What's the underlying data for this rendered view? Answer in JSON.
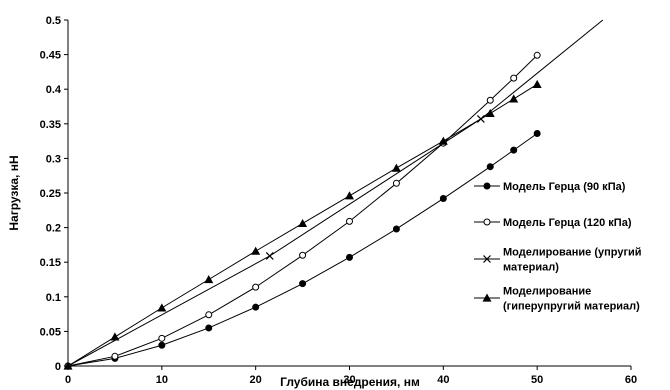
{
  "chart_data": {
    "type": "line",
    "title": "",
    "xlabel": "Глубина внедрения, нм",
    "ylabel": "Нагрузка, нН",
    "xlim": [
      0,
      60
    ],
    "ylim": [
      0,
      0.5
    ],
    "x_ticks": [
      "0",
      "10",
      "20",
      "30",
      "40",
      "50",
      "60"
    ],
    "y_ticks": [
      "0",
      "0.05",
      "0.1",
      "0.15",
      "0.2",
      "0.25",
      "0.3",
      "0.35",
      "0.4",
      "0.45",
      "0.5"
    ],
    "grid": false,
    "legend_position": "right",
    "series": [
      {
        "name": "Модель Герца (90 кПа)",
        "marker": "filled-circle",
        "color": "#000000",
        "x": [
          0,
          5,
          10,
          15,
          20,
          25,
          30,
          35,
          40,
          45,
          47.5,
          50
        ],
        "y": [
          0,
          0.011,
          0.03,
          0.055,
          0.085,
          0.119,
          0.157,
          0.198,
          0.242,
          0.288,
          0.312,
          0.336
        ]
      },
      {
        "name": "Модель Герца (120 кПа)",
        "marker": "open-circle",
        "color": "#000000",
        "x": [
          0,
          5,
          10,
          15,
          20,
          25,
          30,
          35,
          40,
          45,
          47.5,
          50
        ],
        "y": [
          0,
          0.014,
          0.04,
          0.074,
          0.114,
          0.16,
          0.209,
          0.264,
          0.322,
          0.384,
          0.416,
          0.449
        ]
      },
      {
        "name": "Моделирование (упругий материал)",
        "marker": "x",
        "color": "#000000",
        "x": [
          0,
          21.5,
          44,
          57
        ],
        "y": [
          0,
          0.159,
          0.357,
          0.5
        ]
      },
      {
        "name": "Моделирование (гиперупругий материал)",
        "marker": "filled-triangle",
        "color": "#000000",
        "x": [
          0,
          5,
          10,
          15,
          20,
          25,
          30,
          35,
          40,
          45,
          47.5,
          50
        ],
        "y": [
          0,
          0.042,
          0.084,
          0.125,
          0.166,
          0.206,
          0.246,
          0.286,
          0.325,
          0.365,
          0.386,
          0.407
        ]
      }
    ],
    "legend": [
      {
        "lines": [
          "Модель Герца (90 кПа)"
        ]
      },
      {
        "lines": [
          "Модель Герца (120 кПа)"
        ]
      },
      {
        "lines": [
          "Моделирование (упругий",
          "материал)"
        ]
      },
      {
        "lines": [
          "Моделирование",
          "(гиперупругий материал)"
        ]
      }
    ]
  }
}
